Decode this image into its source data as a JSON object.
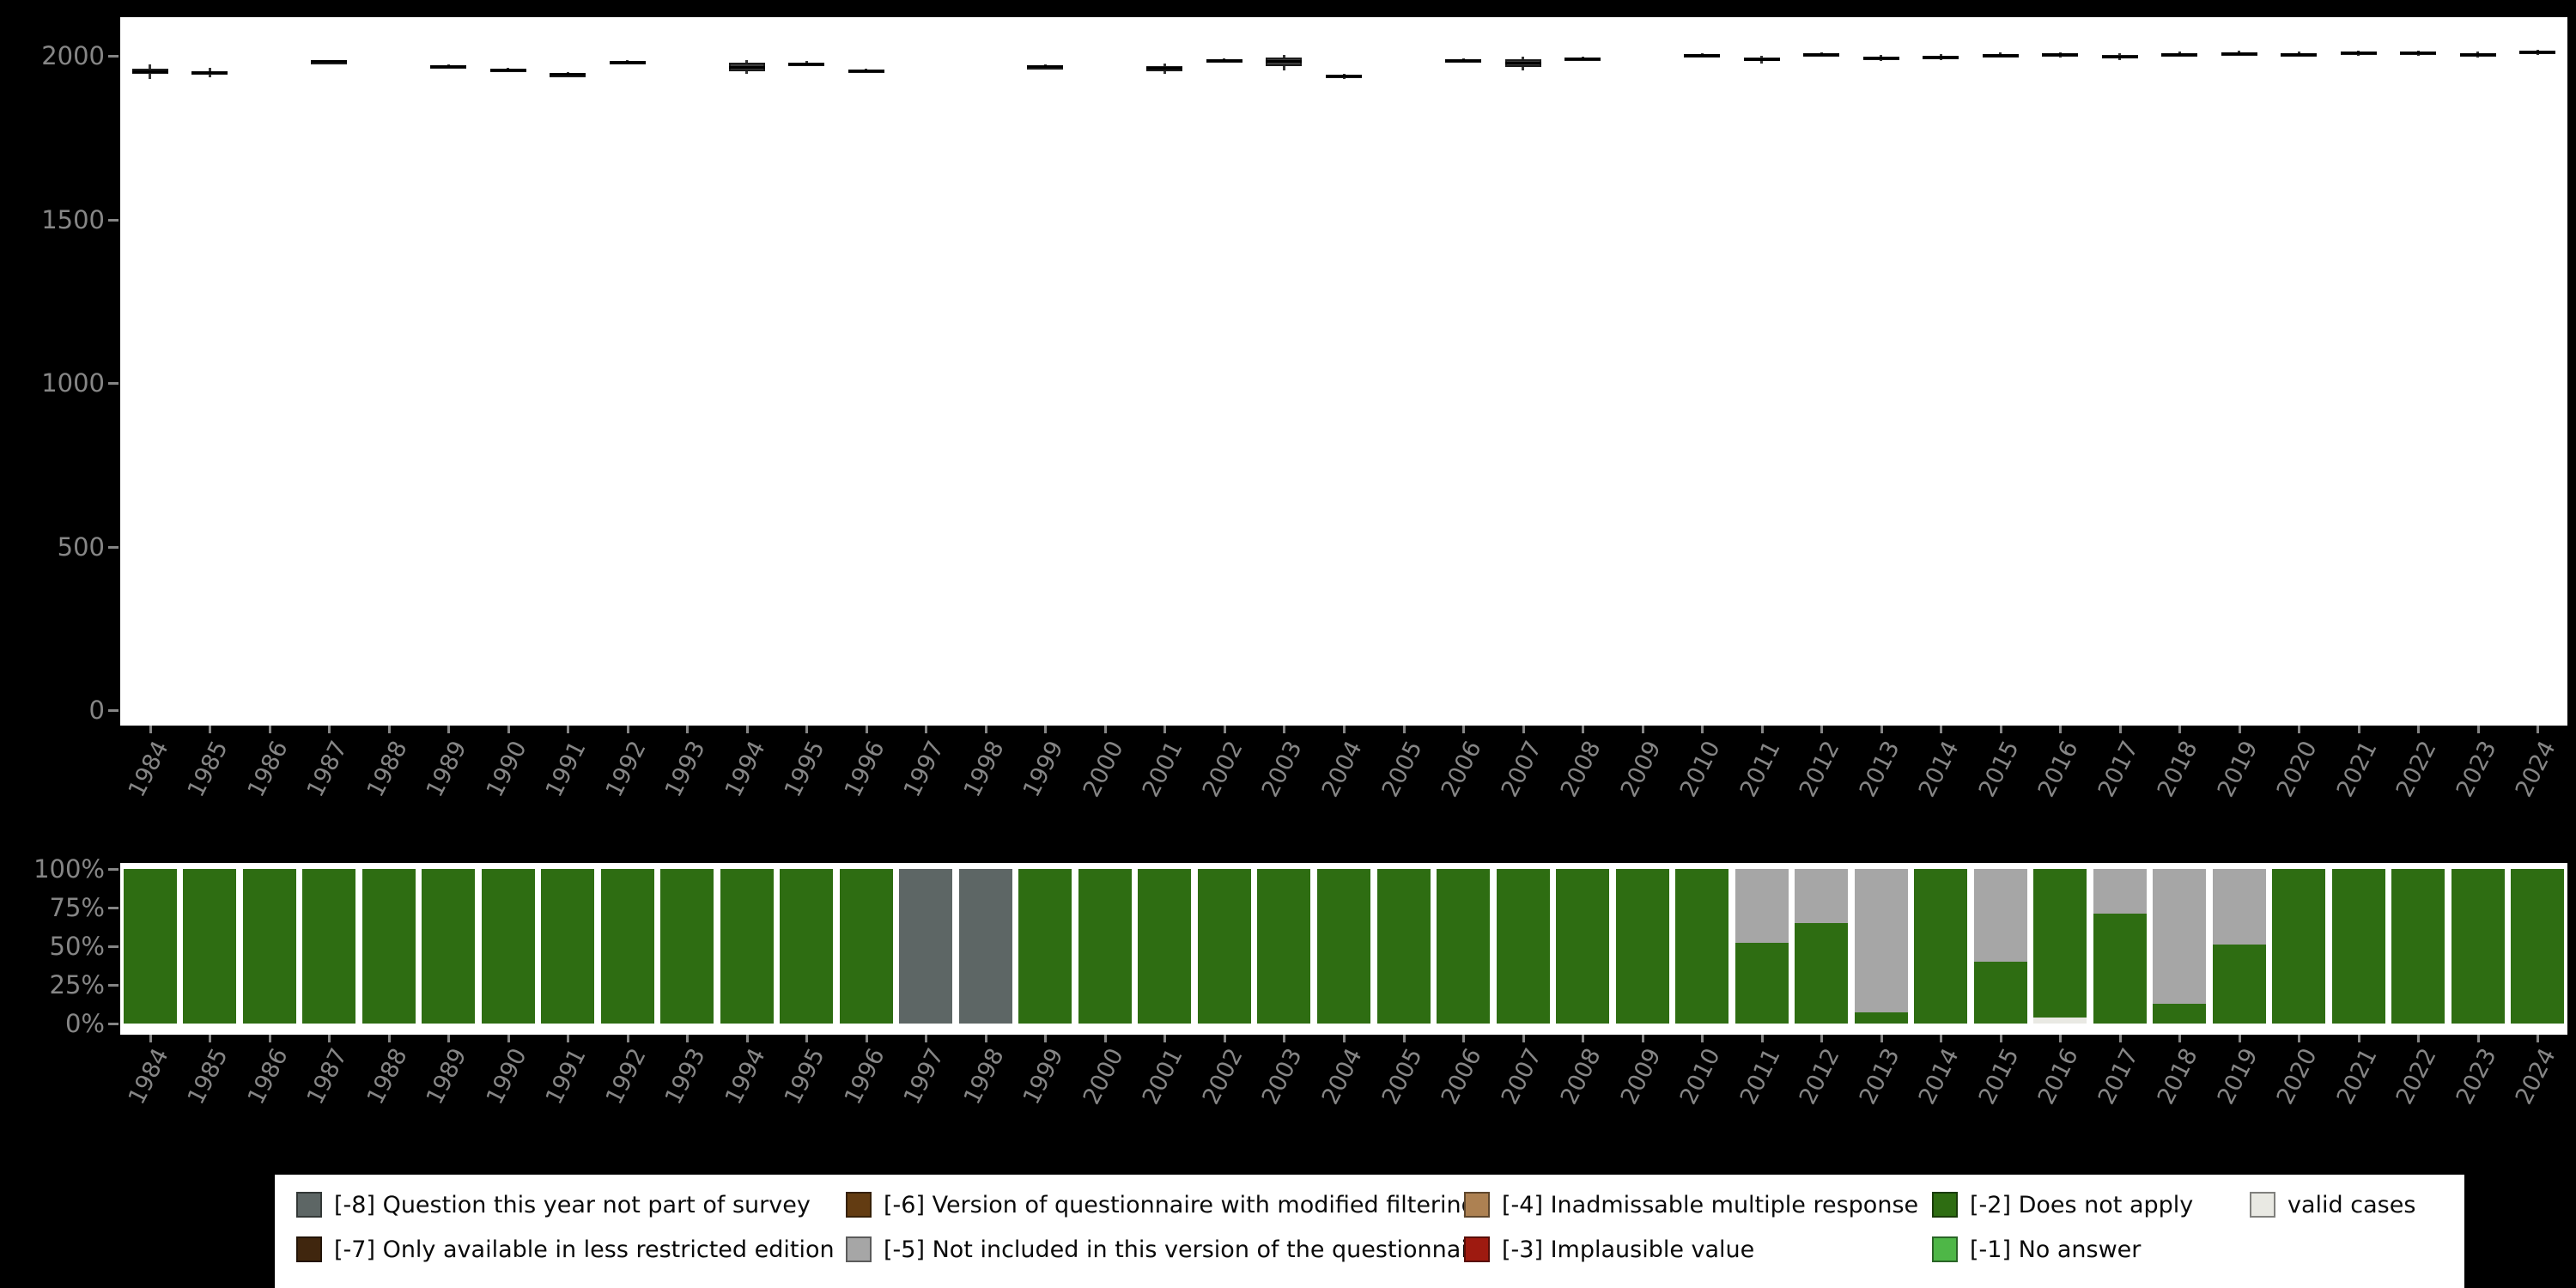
{
  "colors": {
    "background": "#000000",
    "panel": "#ffffff",
    "axis_text": "#868686",
    "box_fill": "#3c3c3c",
    "box_border": "#1c1c1c",
    "median": "#000000"
  },
  "chart_data": [
    {
      "type": "boxplot",
      "title": "",
      "xlabel": "",
      "ylabel": "",
      "ylim": [
        0,
        2000
      ],
      "yticks": [
        0,
        500,
        1000,
        1500,
        2000
      ],
      "categories": [
        "1984",
        "1985",
        "1986",
        "1987",
        "1988",
        "1989",
        "1990",
        "1991",
        "1992",
        "1993",
        "1994",
        "1995",
        "1996",
        "1997",
        "1998",
        "1999",
        "2000",
        "2001",
        "2002",
        "2003",
        "2004",
        "2005",
        "2006",
        "2007",
        "2008",
        "2009",
        "2010",
        "2011",
        "2012",
        "2013",
        "2014",
        "2015",
        "2016",
        "2017",
        "2018",
        "2019",
        "2020",
        "2021",
        "2022",
        "2023",
        "2024"
      ],
      "boxes": {
        "1984": [
          1928,
          1944,
          1952,
          1960,
          1974
        ],
        "1985": [
          1934,
          1942,
          1948,
          1954,
          1964
        ],
        "1986": null,
        "1987": [
          1976,
          1979,
          1982,
          1985,
          1988
        ],
        "1988": null,
        "1989": [
          1961,
          1964,
          1968,
          1971,
          1975
        ],
        "1990": [
          1949,
          1953,
          1956,
          1960,
          1963
        ],
        "1991": [
          1935,
          1939,
          1943,
          1946,
          1950
        ],
        "1992": [
          1975,
          1978,
          1981,
          1984,
          1987
        ],
        "1993": null,
        "1994": [
          1945,
          1952,
          1964,
          1978,
          1988
        ],
        "1995": [
          1969,
          1972,
          1976,
          1979,
          1983
        ],
        "1996": [
          1947,
          1951,
          1954,
          1958,
          1961
        ],
        "1997": null,
        "1998": null,
        "1999": [
          1959,
          1962,
          1966,
          1969,
          1973
        ],
        "2000": null,
        "2001": [
          1944,
          1954,
          1961,
          1968,
          1976
        ],
        "2002": [
          1979,
          1983,
          1986,
          1989,
          1993
        ],
        "2003": [
          1955,
          1968,
          1983,
          1996,
          2003
        ],
        "2004": [
          1930,
          1934,
          1938,
          1941,
          1945
        ],
        "2005": null,
        "2006": [
          1979,
          1982,
          1986,
          1989,
          1992
        ],
        "2007": [
          1955,
          1965,
          1977,
          1990,
          1998
        ],
        "2008": [
          1984,
          1988,
          1991,
          1994,
          1998
        ],
        "2009": null,
        "2010": [
          1994,
          1998,
          2001,
          2004,
          2008
        ],
        "2011": [
          1976,
          1983,
          1989,
          1994,
          2000
        ],
        "2012": [
          1997,
          2000,
          2004,
          2007,
          2011
        ],
        "2013": [
          1984,
          1989,
          1993,
          1997,
          2002
        ],
        "2014": [
          1987,
          1992,
          1996,
          2000,
          2005
        ],
        "2015": [
          1994,
          1998,
          2002,
          2006,
          2010
        ],
        "2016": [
          1995,
          1999,
          2003,
          2007,
          2011
        ],
        "2017": [
          1987,
          1992,
          1997,
          2002,
          2008
        ],
        "2018": [
          1997,
          2001,
          2005,
          2009,
          2013
        ],
        "2019": [
          1999,
          2003,
          2007,
          2011,
          2015
        ],
        "2020": [
          1997,
          2001,
          2005,
          2009,
          2013
        ],
        "2021": [
          1999,
          2004,
          2008,
          2012,
          2016
        ],
        "2022": [
          2001,
          2005,
          2009,
          2013,
          2017
        ],
        "2023": [
          1994,
          1999,
          2004,
          2008,
          2013
        ],
        "2024": [
          2002,
          2006,
          2011,
          2015,
          2019
        ]
      }
    },
    {
      "type": "bar",
      "stacked": true,
      "unit": "percent",
      "title": "",
      "yticks": [
        "0%",
        "25%",
        "50%",
        "75%",
        "100%"
      ],
      "ylim": [
        0,
        100
      ],
      "categories": [
        "1984",
        "1985",
        "1986",
        "1987",
        "1988",
        "1989",
        "1990",
        "1991",
        "1992",
        "1993",
        "1994",
        "1995",
        "1996",
        "1997",
        "1998",
        "1999",
        "2000",
        "2001",
        "2002",
        "2003",
        "2004",
        "2005",
        "2006",
        "2007",
        "2008",
        "2009",
        "2010",
        "2011",
        "2012",
        "2013",
        "2014",
        "2015",
        "2016",
        "2017",
        "2018",
        "2019",
        "2020",
        "2021",
        "2022",
        "2023",
        "2024"
      ],
      "stack_order": [
        "valid",
        "m1",
        "m2",
        "m3",
        "m4",
        "m5",
        "m6",
        "m7",
        "m8"
      ],
      "series": [
        {
          "key": "m8",
          "label": "[-8] Question this year not part of survey",
          "color": "#5d6665"
        },
        {
          "key": "m7",
          "label": "[-7] Only available in less restricted edition",
          "color": "#40260e"
        },
        {
          "key": "m6",
          "label": "[-6] Version of questionnaire with modified filtering",
          "color": "#633c12"
        },
        {
          "key": "m5",
          "label": "[-5] Not included in this version of the questionnaire",
          "color": "#a6a6a6"
        },
        {
          "key": "m4",
          "label": "[-4] Inadmissable multiple response",
          "color": "#ad8152"
        },
        {
          "key": "m3",
          "label": "[-3] Implausible value",
          "color": "#9e1a10"
        },
        {
          "key": "m2",
          "label": "[-2] Does not apply",
          "color": "#2e6d12"
        },
        {
          "key": "m1",
          "label": "[-1] No answer",
          "color": "#4eb747"
        },
        {
          "key": "valid",
          "label": "valid cases",
          "color": "#e9e9e3"
        }
      ],
      "composition": {
        "1984": {
          "m2": 100
        },
        "1985": {
          "m2": 100
        },
        "1986": {
          "m2": 100
        },
        "1987": {
          "m2": 100
        },
        "1988": {
          "m2": 100
        },
        "1989": {
          "m2": 100
        },
        "1990": {
          "m2": 100
        },
        "1991": {
          "m2": 100
        },
        "1992": {
          "m2": 100
        },
        "1993": {
          "m2": 100
        },
        "1994": {
          "m2": 100
        },
        "1995": {
          "m2": 100
        },
        "1996": {
          "m2": 100
        },
        "1997": {
          "m8": 100
        },
        "1998": {
          "m8": 100
        },
        "1999": {
          "m2": 100
        },
        "2000": {
          "m2": 100
        },
        "2001": {
          "m2": 100
        },
        "2002": {
          "m2": 100
        },
        "2003": {
          "m2": 100
        },
        "2004": {
          "m2": 100
        },
        "2005": {
          "m2": 100
        },
        "2006": {
          "m2": 100
        },
        "2007": {
          "m2": 100
        },
        "2008": {
          "m2": 100
        },
        "2009": {
          "m2": 100
        },
        "2010": {
          "m2": 100
        },
        "2011": {
          "m2": 52,
          "m5": 48
        },
        "2012": {
          "m2": 65,
          "m5": 35
        },
        "2013": {
          "m2": 7,
          "m5": 93
        },
        "2014": {
          "m2": 100
        },
        "2015": {
          "m2": 40,
          "m5": 60
        },
        "2016": {
          "valid": 4,
          "m2": 96
        },
        "2017": {
          "m2": 71,
          "m5": 29
        },
        "2018": {
          "m2": 13,
          "m5": 87
        },
        "2019": {
          "m2": 51,
          "m5": 49
        },
        "2020": {
          "m2": 100
        },
        "2021": {
          "m2": 100
        },
        "2022": {
          "m2": 100
        },
        "2023": {
          "m2": 100
        },
        "2024": {
          "m2": 100
        }
      }
    }
  ],
  "legend": {
    "rows": [
      [
        "m8",
        "m6",
        "m4",
        "m2",
        "valid"
      ],
      [
        "m7",
        "m5",
        "m3",
        "m1"
      ]
    ]
  }
}
